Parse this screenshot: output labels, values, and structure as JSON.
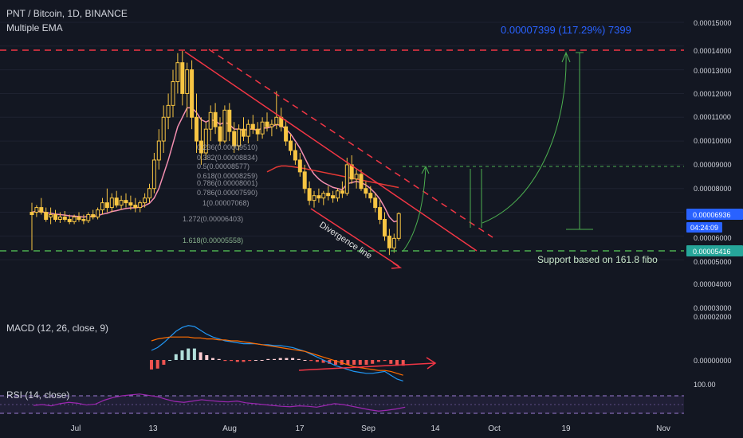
{
  "header": {
    "symbol": "PNT / Bitcoin, 1D, BINANCE",
    "indicator": "Multiple EMA"
  },
  "colors": {
    "background": "#131722",
    "bull": "#f7c543",
    "bear": "#f7c543",
    "ema_pink": "#f48fb1",
    "ema_red": "#e53935",
    "trend_red": "#f23645",
    "green": "#4caf50",
    "measure_text": "#2962ff",
    "axis_text": "#d1d4dc",
    "macd_line": "#2196f3",
    "signal_line": "#ff6d00",
    "rsi_line": "#9c27b0"
  },
  "price_axis": {
    "ticks": [
      "0.00015000",
      "0.00014000",
      "0.00013000",
      "0.00012000",
      "0.00011000",
      "0.00010000",
      "0.00009000",
      "0.00008000",
      "0.00007000",
      "0.00006000",
      "0.00005000",
      "0.00004000",
      "0.00003000",
      "0.00002000",
      "0.00000000",
      "100.00"
    ],
    "badges": {
      "last_price": "0.00006936",
      "countdown": "04:24:09",
      "support": "0.00005416"
    }
  },
  "time_axis": {
    "ticks": [
      "Jul",
      "13",
      "Aug",
      "17",
      "Sep",
      "14",
      "Oct",
      "19",
      "Nov"
    ]
  },
  "annotations": {
    "measure": "0.00007399 (117.29%) 7399",
    "support_text": "Support based on 161.8 fibo",
    "divergence_text": "Divergence line",
    "fib_levels": [
      "0.236(0.00009510)",
      "0.382(0.00008834)",
      "0.5(0.00008577)",
      "0.618(0.00008259)",
      "0.786(0.00008001)",
      "0.786(0.00007590)",
      "1(0.00007068)",
      "1.272(0.00006403)",
      "1.618(0.00005558)"
    ]
  },
  "macd": {
    "label": "MACD (12, 26, close, 9)",
    "axis_tick": "0.00000000"
  },
  "rsi": {
    "label": "RSI (14, close)",
    "axis_tick": "100.00"
  },
  "chart_data": {
    "type": "candlestick",
    "title": "PNT / Bitcoin, 1D, BINANCE",
    "x_range": [
      "2020-06-26",
      "2020-11-05"
    ],
    "y_range": [
      2e-05,
      0.000155
    ],
    "candles": [
      {
        "o": 7e-05,
        "h": 7.4e-05,
        "l": 5.4e-05,
        "c": 6.9e-05
      },
      {
        "o": 7e-05,
        "h": 7.3e-05,
        "l": 6.8e-05,
        "c": 7.2e-05
      },
      {
        "o": 7.2e-05,
        "h": 7.6e-05,
        "l": 6.9e-05,
        "c": 7e-05
      },
      {
        "o": 7e-05,
        "h": 7.2e-05,
        "l": 6.6e-05,
        "c": 6.7e-05
      },
      {
        "o": 6.8e-05,
        "h": 7.2e-05,
        "l": 6.5e-05,
        "c": 6.9e-05
      },
      {
        "o": 6.9e-05,
        "h": 7.1e-05,
        "l": 6.6e-05,
        "c": 6.7e-05
      },
      {
        "o": 6.7e-05,
        "h": 7e-05,
        "l": 6.55e-05,
        "c": 6.8e-05
      },
      {
        "o": 6.8e-05,
        "h": 7.05e-05,
        "l": 6.6e-05,
        "c": 6.7e-05
      },
      {
        "o": 6.7e-05,
        "h": 6.9e-05,
        "l": 6.5e-05,
        "c": 6.6e-05
      },
      {
        "o": 6.6e-05,
        "h": 6.9e-05,
        "l": 6.5e-05,
        "c": 6.8e-05
      },
      {
        "o": 6.8e-05,
        "h": 7e-05,
        "l": 6.6e-05,
        "c": 6.7e-05
      },
      {
        "o": 6.7e-05,
        "h": 6.9e-05,
        "l": 6.5e-05,
        "c": 6.65e-05
      },
      {
        "o": 6.65e-05,
        "h": 7e-05,
        "l": 6.55e-05,
        "c": 6.9e-05
      },
      {
        "o": 6.9e-05,
        "h": 7.1e-05,
        "l": 6.7e-05,
        "c": 6.8e-05
      },
      {
        "o": 6.8e-05,
        "h": 7.2e-05,
        "l": 6.7e-05,
        "c": 7.1e-05
      },
      {
        "o": 7.1e-05,
        "h": 7.6e-05,
        "l": 6.9e-05,
        "c": 7.4e-05
      },
      {
        "o": 7.4e-05,
        "h": 8e-05,
        "l": 7e-05,
        "c": 7.2e-05
      },
      {
        "o": 7.2e-05,
        "h": 7.8e-05,
        "l": 7e-05,
        "c": 7.6e-05
      },
      {
        "o": 7.6e-05,
        "h": 7.9e-05,
        "l": 7.2e-05,
        "c": 7.3e-05
      },
      {
        "o": 7.3e-05,
        "h": 7.7e-05,
        "l": 7.1e-05,
        "c": 7.5e-05
      },
      {
        "o": 7.5e-05,
        "h": 7.8e-05,
        "l": 7.2e-05,
        "c": 7.4e-05
      },
      {
        "o": 7.4e-05,
        "h": 7.7e-05,
        "l": 7.1e-05,
        "c": 7.3e-05
      },
      {
        "o": 7.3e-05,
        "h": 7.6e-05,
        "l": 7e-05,
        "c": 7.2e-05
      },
      {
        "o": 7.2e-05,
        "h": 7.5e-05,
        "l": 7e-05,
        "c": 7.4e-05
      },
      {
        "o": 7.4e-05,
        "h": 7.8e-05,
        "l": 7.2e-05,
        "c": 7.6e-05
      },
      {
        "o": 7.6e-05,
        "h": 8.2e-05,
        "l": 7.4e-05,
        "c": 8e-05
      },
      {
        "o": 8e-05,
        "h": 9.5e-05,
        "l": 7.8e-05,
        "c": 9.2e-05
      },
      {
        "o": 9.2e-05,
        "h": 0.000105,
        "l": 8.8e-05,
        "c": 0.0001
      },
      {
        "o": 0.0001,
        "h": 0.000115,
        "l": 9.5e-05,
        "c": 0.00011
      },
      {
        "o": 0.00011,
        "h": 0.00012,
        "l": 0.000105,
        "c": 0.000115
      },
      {
        "o": 0.000115,
        "h": 0.00013,
        "l": 0.00011,
        "c": 0.000125
      },
      {
        "o": 0.000125,
        "h": 0.000137,
        "l": 0.00012,
        "c": 0.000133
      },
      {
        "o": 0.000133,
        "h": 0.000138,
        "l": 0.000115,
        "c": 0.00012
      },
      {
        "o": 0.00012,
        "h": 0.000133,
        "l": 0.00011,
        "c": 0.00013
      },
      {
        "o": 0.00013,
        "h": 0.000134,
        "l": 0.000105,
        "c": 0.00011
      },
      {
        "o": 0.00011,
        "h": 0.00012,
        "l": 9.5e-05,
        "c": 0.0001
      },
      {
        "o": 0.0001,
        "h": 0.00011,
        "l": 9e-05,
        "c": 9.5e-05
      },
      {
        "o": 9.5e-05,
        "h": 0.000108,
        "l": 9.2e-05,
        "c": 0.000105
      },
      {
        "o": 0.000105,
        "h": 0.000115,
        "l": 0.0001,
        "c": 0.000112
      },
      {
        "o": 0.000112,
        "h": 0.000116,
        "l": 0.000103,
        "c": 0.000106
      },
      {
        "o": 0.000106,
        "h": 0.00011,
        "l": 9.8e-05,
        "c": 0.0001
      },
      {
        "o": 0.0001,
        "h": 0.000115,
        "l": 9.9e-05,
        "c": 0.000113
      },
      {
        "o": 0.000113,
        "h": 0.000116,
        "l": 0.0001,
        "c": 0.000104
      },
      {
        "o": 0.000104,
        "h": 0.000108,
        "l": 9.5e-05,
        "c": 9.8e-05
      },
      {
        "o": 9.8e-05,
        "h": 0.000107,
        "l": 9.6e-05,
        "c": 0.000105
      },
      {
        "o": 0.000105,
        "h": 0.00011,
        "l": 0.0001,
        "c": 0.000102
      },
      {
        "o": 0.000102,
        "h": 0.000109,
        "l": 9.9e-05,
        "c": 0.000107
      },
      {
        "o": 0.000107,
        "h": 0.000111,
        "l": 0.000103,
        "c": 0.000105
      },
      {
        "o": 0.000105,
        "h": 0.000108,
        "l": 0.0001,
        "c": 0.000103
      },
      {
        "o": 0.000103,
        "h": 0.00011,
        "l": 0.000101,
        "c": 0.000108
      },
      {
        "o": 0.000108,
        "h": 0.000112,
        "l": 0.000104,
        "c": 0.000106
      },
      {
        "o": 0.000106,
        "h": 0.000109,
        "l": 0.000102,
        "c": 0.000107
      },
      {
        "o": 0.000107,
        "h": 0.000121,
        "l": 0.000105,
        "c": 0.00011
      },
      {
        "o": 0.00011,
        "h": 0.000114,
        "l": 0.000104,
        "c": 0.000106
      },
      {
        "o": 0.000106,
        "h": 0.000109,
        "l": 9.8e-05,
        "c": 0.0001
      },
      {
        "o": 0.0001,
        "h": 0.000103,
        "l": 9.4e-05,
        "c": 9.6e-05
      },
      {
        "o": 9.6e-05,
        "h": 9.9e-05,
        "l": 9e-05,
        "c": 9.2e-05
      },
      {
        "o": 9.2e-05,
        "h": 9.5e-05,
        "l": 8.5e-05,
        "c": 8.7e-05
      },
      {
        "o": 8.7e-05,
        "h": 9e-05,
        "l": 7.8e-05,
        "c": 8e-05
      },
      {
        "o": 8e-05,
        "h": 8.3e-05,
        "l": 7.3e-05,
        "c": 7.5e-05
      },
      {
        "o": 7.5e-05,
        "h": 7.9e-05,
        "l": 7.2e-05,
        "c": 7.7e-05
      },
      {
        "o": 7.7e-05,
        "h": 8e-05,
        "l": 7.4e-05,
        "c": 7.6e-05
      },
      {
        "o": 7.6e-05,
        "h": 7.9e-05,
        "l": 7.3e-05,
        "c": 7.8e-05
      },
      {
        "o": 7.8e-05,
        "h": 8.1e-05,
        "l": 7.5e-05,
        "c": 7.7e-05
      },
      {
        "o": 7.7e-05,
        "h": 7.9e-05,
        "l": 7.4e-05,
        "c": 7.6e-05
      },
      {
        "o": 7.6e-05,
        "h": 8e-05,
        "l": 7.45e-05,
        "c": 7.9e-05
      },
      {
        "o": 7.9e-05,
        "h": 8.3e-05,
        "l": 7.6e-05,
        "c": 7.8e-05
      },
      {
        "o": 7.8e-05,
        "h": 9.3e-05,
        "l": 7.7e-05,
        "c": 9e-05
      },
      {
        "o": 9e-05,
        "h": 9.4e-05,
        "l": 8.2e-05,
        "c": 8.4e-05
      },
      {
        "o": 8.4e-05,
        "h": 8.8e-05,
        "l": 8e-05,
        "c": 8.6e-05
      },
      {
        "o": 8.6e-05,
        "h": 8.8e-05,
        "l": 7.9e-05,
        "c": 8e-05
      },
      {
        "o": 8e-05,
        "h": 8.3e-05,
        "l": 7.6e-05,
        "c": 7.8e-05
      },
      {
        "o": 7.8e-05,
        "h": 8.1e-05,
        "l": 7.4e-05,
        "c": 7.6e-05
      },
      {
        "o": 7.6e-05,
        "h": 7.8e-05,
        "l": 7e-05,
        "c": 7.2e-05
      },
      {
        "o": 7.2e-05,
        "h": 7.5e-05,
        "l": 6.5e-05,
        "c": 6.7e-05
      },
      {
        "o": 6.7e-05,
        "h": 7e-05,
        "l": 5.8e-05,
        "c": 6e-05
      },
      {
        "o": 6e-05,
        "h": 6.3e-05,
        "l": 5.2e-05,
        "c": 5.5e-05
      },
      {
        "o": 5.5e-05,
        "h": 6.1e-05,
        "l": 5.3e-05,
        "c": 5.9e-05
      },
      {
        "o": 5.9e-05,
        "h": 7e-05,
        "l": 5.8e-05,
        "c": 6.94e-05
      }
    ],
    "ema_pink": [
      7e-05,
      7.05e-05,
      7.03e-05,
      6.98e-05,
      6.96e-05,
      6.92e-05,
      6.9e-05,
      6.88e-05,
      6.85e-05,
      6.84e-05,
      6.82e-05,
      6.8e-05,
      6.82e-05,
      6.82e-05,
      6.86e-05,
      6.92e-05,
      6.96e-05,
      7.03e-05,
      7.07e-05,
      7.12e-05,
      7.16e-05,
      7.18e-05,
      7.19e-05,
      7.22e-05,
      7.28e-05,
      7.38e-05,
      7.6e-05,
      8e-05,
      8.6e-05,
      9.2e-05,
      9.9e-05,
      0.000106,
      0.00011,
      0.000114,
      0.000114,
      0.000112,
      0.000109,
      0.000108,
      0.000109,
      0.0001085,
      0.000107,
      0.000108,
      0.000107,
      0.000105,
      0.000105,
      0.0001045,
      0.000105,
      0.000105,
      0.0001045,
      0.0001055,
      0.0001055,
      0.000106,
      0.000107,
      0.0001065,
      0.000105,
      0.000103,
      0.0001,
      9.7e-05,
      9.3e-05,
      8.9e-05,
      8.6e-05,
      8.4e-05,
      8.25e-05,
      8.15e-05,
      8.05e-05,
      8e-05,
      7.95e-05,
      8.2e-05,
      8.25e-05,
      8.3e-05,
      8.25e-05,
      8.15e-05,
      8e-05,
      7.8e-05,
      7.55e-05,
      7.2e-05,
      6.8e-05,
      6.6e-05,
      6.65e-05
    ],
    "ema_red_segment": {
      "from_index": 50,
      "values": [
        8.7e-05,
        8.8e-05,
        8.9e-05,
        8.95e-05,
        8.95e-05,
        8.93e-05,
        8.9e-05,
        8.87e-05,
        8.84e-05,
        8.8e-05,
        8.76e-05,
        8.72e-05,
        8.68e-05,
        8.64e-05,
        8.6e-05,
        8.56e-05,
        8.52e-05,
        8.48e-05,
        8.44e-05,
        8.4e-05,
        8.36e-05,
        8.32e-05,
        8.28e-05,
        8.24e-05,
        8.2e-05,
        8.16e-05,
        8.12e-05,
        8.08e-05,
        8.04e-05
      ]
    },
    "macd_line": [
      1e-06,
      1.3e-06,
      1.8e-06,
      2.4e-06,
      3e-06,
      3.4e-06,
      3.6e-06,
      3.5e-06,
      3.1e-06,
      2.7e-06,
      2.4e-06,
      2.2e-06,
      2e-06,
      1.9e-06,
      1.8e-06,
      1.7e-06,
      1.7e-06,
      1.7e-06,
      1.6e-06,
      1.6e-06,
      1.5e-06,
      1.5e-06,
      1.4e-06,
      1.3e-06,
      1.1e-06,
      9e-07,
      6e-07,
      3e-07,
      0.0,
      -3e-07,
      -6e-07,
      -8e-07,
      -1e-06,
      -1.2e-06,
      -1.3e-06,
      -1.4e-06,
      -1.4e-06,
      -1.3e-06,
      -1.2e-06,
      -1.6e-06,
      -2e-06,
      -2.2e-06
    ],
    "signal_line": [
      2e-06,
      2.2e-06,
      2.3e-06,
      2.4e-06,
      2.4e-06,
      2.4e-06,
      2.4e-06,
      2.3e-06,
      2.3e-06,
      2.2e-06,
      2.2e-06,
      2.1e-06,
      2.1e-06,
      2e-06,
      2e-06,
      1.9e-06,
      1.8e-06,
      1.7e-06,
      1.6e-06,
      1.5e-06,
      1.4e-06,
      1.3e-06,
      1.2e-06,
      1.1e-06,
      1e-06,
      9e-07,
      7e-07,
      5e-07,
      3e-07,
      1e-07,
      -1e-07,
      -3e-07,
      -5e-07,
      -7e-07,
      -8e-07,
      -9e-07,
      -1e-06,
      -1.1e-06,
      -1.1e-06,
      -1.2e-06,
      -1.4e-06,
      -1.6e-06
    ],
    "rsi_values": [
      48,
      50,
      47,
      52,
      55,
      53,
      49,
      51,
      60,
      66,
      70,
      72,
      74,
      71,
      68,
      62,
      57,
      55,
      58,
      61,
      59,
      57,
      56,
      58,
      54,
      52,
      50,
      48,
      46,
      45,
      47,
      46,
      44,
      48,
      52,
      50,
      46,
      42,
      38,
      35,
      37,
      40,
      44
    ]
  }
}
